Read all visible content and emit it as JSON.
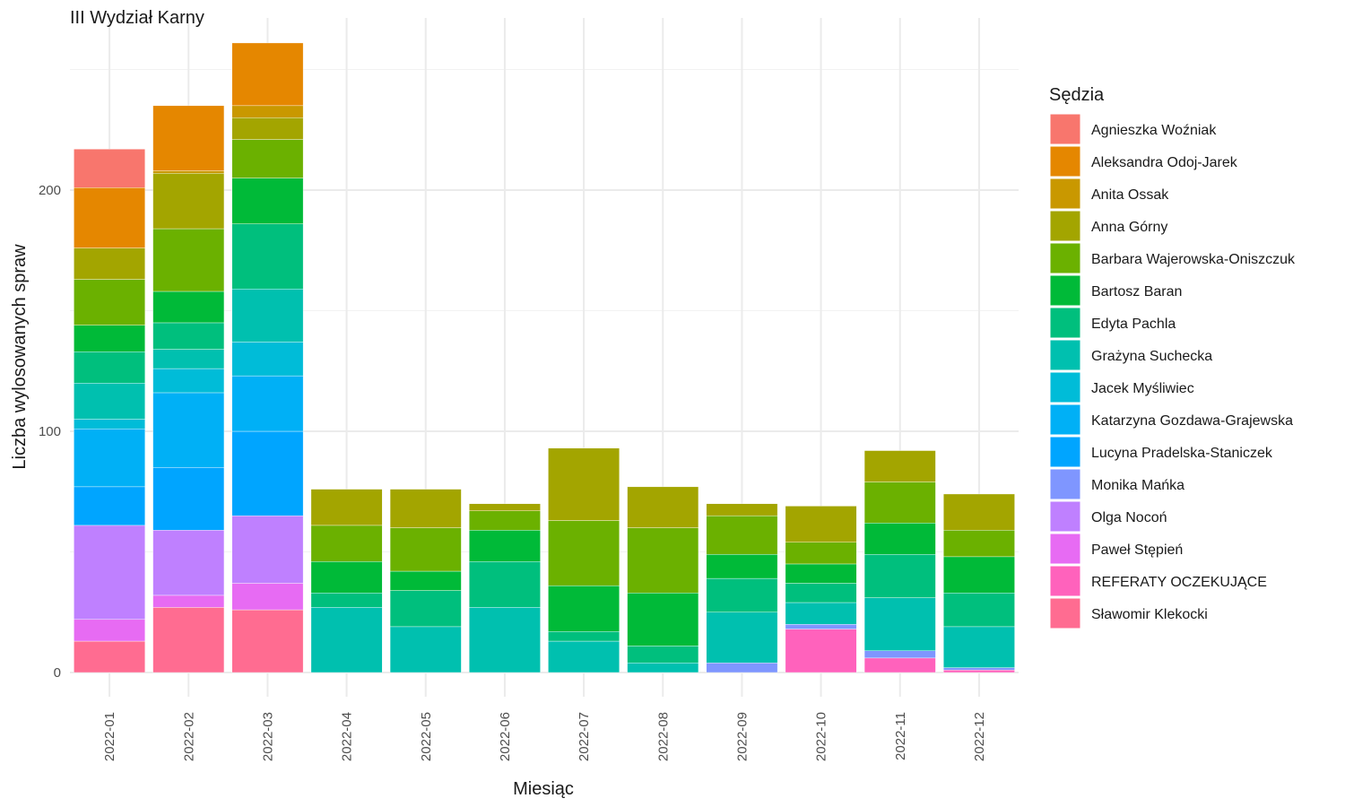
{
  "chart_data": {
    "type": "bar",
    "stacked": true,
    "title": "III Wydział Karny",
    "xlabel": "Miesiąc",
    "ylabel": "Liczba wylosowanych spraw",
    "ylim": [
      0,
      265
    ],
    "yticks": [
      0,
      100,
      200
    ],
    "grid": true,
    "legend_title": "Sędzia",
    "legend_position": "right",
    "categories": [
      "2022-01",
      "2022-02",
      "2022-03",
      "2022-04",
      "2022-05",
      "2022-06",
      "2022-07",
      "2022-08",
      "2022-09",
      "2022-10",
      "2022-11",
      "2022-12"
    ],
    "series": [
      {
        "name": "Agnieszka Woźniak",
        "color": "#F8766D",
        "values": [
          16,
          0,
          0,
          0,
          0,
          0,
          0,
          0,
          0,
          0,
          0,
          0
        ]
      },
      {
        "name": "Aleksandra Odoj-Jarek",
        "color": "#E58700",
        "values": [
          25,
          27,
          26,
          0,
          0,
          0,
          0,
          0,
          0,
          0,
          0,
          0
        ]
      },
      {
        "name": "Anita Ossak",
        "color": "#C99800",
        "values": [
          0,
          1,
          5,
          0,
          0,
          0,
          0,
          0,
          0,
          0,
          0,
          0
        ]
      },
      {
        "name": "Anna Górny",
        "color": "#A3A500",
        "values": [
          13,
          23,
          9,
          15,
          16,
          3,
          30,
          17,
          5,
          15,
          13,
          15
        ]
      },
      {
        "name": "Barbara Wajerowska-Oniszczuk",
        "color": "#6BB100",
        "values": [
          19,
          26,
          16,
          15,
          18,
          8,
          27,
          27,
          16,
          9,
          17,
          11
        ]
      },
      {
        "name": "Bartosz Baran",
        "color": "#00BA38",
        "values": [
          11,
          13,
          19,
          13,
          8,
          13,
          19,
          22,
          10,
          8,
          13,
          15
        ]
      },
      {
        "name": "Edyta Pachla",
        "color": "#00BF7D",
        "values": [
          13,
          11,
          27,
          6,
          15,
          19,
          4,
          7,
          14,
          8,
          18,
          14
        ]
      },
      {
        "name": "Grażyna Suchecka",
        "color": "#00C0AF",
        "values": [
          15,
          8,
          22,
          27,
          19,
          27,
          13,
          4,
          21,
          9,
          22,
          17
        ]
      },
      {
        "name": "Jacek Myśliwiec",
        "color": "#00BCD8",
        "values": [
          4,
          10,
          14,
          0,
          0,
          0,
          0,
          0,
          0,
          0,
          0,
          0
        ]
      },
      {
        "name": "Katarzyna Gozdawa-Grajewska",
        "color": "#00B0F6",
        "values": [
          24,
          31,
          23,
          0,
          0,
          0,
          0,
          0,
          0,
          0,
          0,
          0
        ]
      },
      {
        "name": "Lucyna Pradelska-Staniczek",
        "color": "#00A5FF",
        "values": [
          16,
          26,
          35,
          0,
          0,
          0,
          0,
          0,
          0,
          0,
          0,
          0
        ]
      },
      {
        "name": "Monika Mańka",
        "color": "#7F96FF",
        "values": [
          0,
          0,
          0,
          0,
          0,
          0,
          0,
          0,
          4,
          2,
          3,
          1
        ]
      },
      {
        "name": "Olga Nocoń",
        "color": "#BF80FF",
        "values": [
          39,
          27,
          28,
          0,
          0,
          0,
          0,
          0,
          0,
          0,
          0,
          0
        ]
      },
      {
        "name": "Paweł Stępień",
        "color": "#E76BF3",
        "values": [
          9,
          5,
          11,
          0,
          0,
          0,
          0,
          0,
          0,
          0,
          0,
          0
        ]
      },
      {
        "name": "REFERATY OCZEKUJĄCE",
        "color": "#FF62BC",
        "values": [
          0,
          0,
          0,
          0,
          0,
          0,
          0,
          0,
          0,
          18,
          6,
          1
        ]
      },
      {
        "name": "Sławomir Klekocki",
        "color": "#FF6C91",
        "values": [
          13,
          27,
          26,
          0,
          0,
          0,
          0,
          0,
          0,
          0,
          0,
          0
        ]
      }
    ]
  }
}
